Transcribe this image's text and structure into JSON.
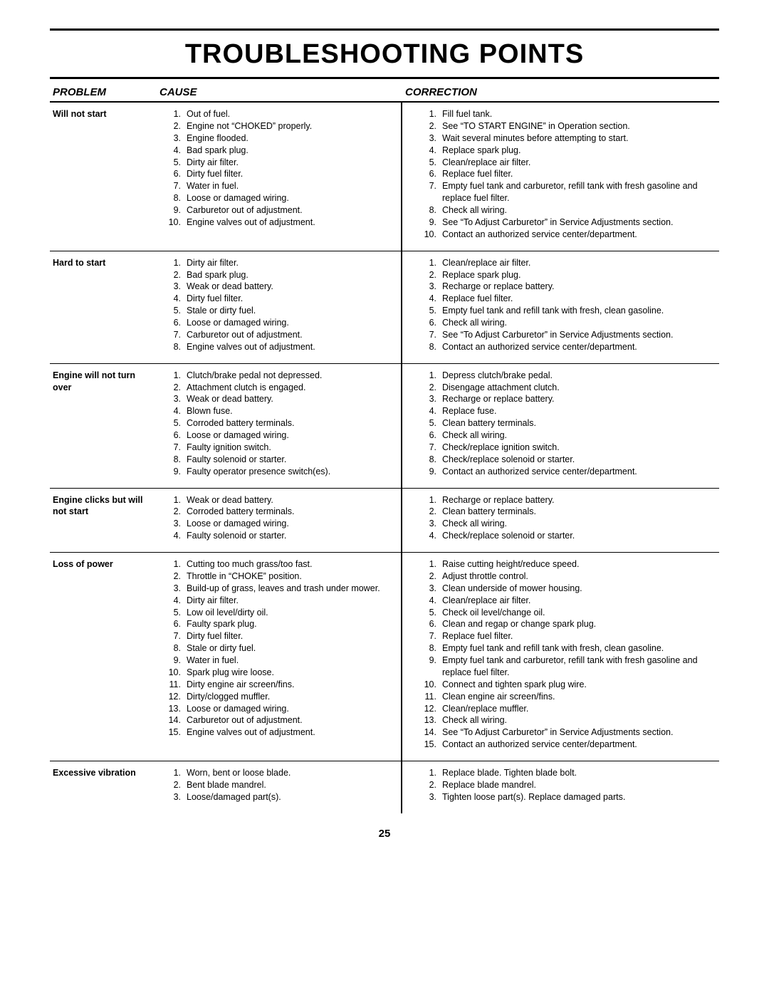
{
  "title": "TROUBLESHOOTING POINTS",
  "page_number": "25",
  "headers": {
    "problem": "PROBLEM",
    "cause": "CAUSE",
    "correction": "CORRECTION"
  },
  "colors": {
    "text": "#000000",
    "bg": "#ffffff",
    "rule": "#000000"
  },
  "typography": {
    "title_fontsize": 38,
    "header_fontsize": 15,
    "body_fontsize": 12.5
  },
  "sections": [
    {
      "problem": "Will not start",
      "causes": [
        "Out of fuel.",
        "Engine not “CHOKED” properly.",
        "Engine flooded.",
        "Bad spark plug.",
        "Dirty air filter.",
        "Dirty fuel filter.",
        "Water in fuel.",
        "Loose or damaged wiring.",
        "Carburetor out of adjustment.",
        "Engine valves out of adjustment."
      ],
      "corrections": [
        "Fill fuel tank.",
        "See “TO START ENGINE” in Operation section.",
        "Wait several minutes before attempting to start.",
        "Replace spark plug.",
        "Clean/replace air filter.",
        "Replace fuel filter.",
        "Empty fuel tank and carburetor, refill tank with fresh gasoline and replace fuel filter.",
        "Check all wiring.",
        "See “To Adjust Carburetor” in Service Adjustments section.",
        "Contact an authorized service center/department."
      ]
    },
    {
      "problem": "Hard to start",
      "causes": [
        "Dirty air filter.",
        "Bad spark plug.",
        "Weak or dead battery.",
        "Dirty fuel filter.",
        "Stale or dirty fuel.",
        "Loose or damaged wiring.",
        "Carburetor out of adjustment.",
        "Engine valves out of adjustment."
      ],
      "corrections": [
        "Clean/replace air filter.",
        "Replace spark plug.",
        "Recharge or replace battery.",
        "Replace fuel filter.",
        "Empty fuel tank and refill tank with fresh, clean gasoline.",
        "Check all wiring.",
        "See “To Adjust Carburetor” in Service Adjustments section.",
        "Contact an authorized service center/department."
      ]
    },
    {
      "problem": "Engine will not turn over",
      "causes": [
        "Clutch/brake pedal not depressed.",
        "Attachment clutch is engaged.",
        "Weak or dead battery.",
        "Blown fuse.",
        "Corroded battery terminals.",
        "Loose or damaged wiring.",
        "Faulty ignition switch.",
        "Faulty solenoid or starter.",
        "Faulty operator presence switch(es)."
      ],
      "corrections": [
        "Depress clutch/brake pedal.",
        "Disengage attachment clutch.",
        "Recharge or replace battery.",
        "Replace fuse.",
        "Clean battery terminals.",
        "Check all wiring.",
        "Check/replace ignition switch.",
        "Check/replace solenoid or starter.",
        "Contact an authorized service center/department."
      ]
    },
    {
      "problem": "Engine clicks but will not start",
      "causes": [
        "Weak or dead battery.",
        "Corroded battery terminals.",
        "Loose or damaged wiring.",
        "Faulty solenoid or starter."
      ],
      "corrections": [
        "Recharge or replace battery.",
        "Clean battery terminals.",
        "Check all wiring.",
        "Check/replace solenoid or starter."
      ]
    },
    {
      "problem": "Loss of power",
      "causes": [
        "Cutting too much grass/too fast.",
        "Throttle in “CHOKE” position.",
        "Build-up of grass, leaves and trash under mower.",
        "Dirty air filter.",
        "Low oil level/dirty oil.",
        "Faulty spark plug.",
        "Dirty fuel filter.",
        "Stale or dirty fuel.",
        "Water in fuel.",
        "Spark plug wire loose.",
        "Dirty engine air screen/fins.",
        "Dirty/clogged muffler.",
        "Loose or damaged wiring.",
        "Carburetor out of adjustment.",
        "Engine valves out of adjustment."
      ],
      "corrections": [
        "Raise cutting height/reduce speed.",
        "Adjust throttle control.",
        "Clean underside of mower housing.",
        "Clean/replace air filter.",
        "Check oil level/change oil.",
        "Clean and regap or change spark plug.",
        "Replace fuel filter.",
        "Empty fuel tank and refill tank with fresh, clean gasoline.",
        "Empty fuel tank and carburetor, refill tank with fresh gasoline and replace fuel filter.",
        "Connect and tighten spark plug wire.",
        "Clean engine air screen/fins.",
        "Clean/replace muffler.",
        "Check all wiring.",
        "See “To Adjust Carburetor” in Service Adjustments section.",
        "Contact an authorized service center/department."
      ]
    },
    {
      "problem": "Excessive vibration",
      "causes": [
        "Worn, bent or loose blade.",
        "Bent blade mandrel.",
        "Loose/damaged part(s)."
      ],
      "corrections": [
        "Replace blade.  Tighten blade bolt.",
        "Replace blade mandrel.",
        "Tighten loose part(s).  Replace damaged parts."
      ]
    }
  ]
}
